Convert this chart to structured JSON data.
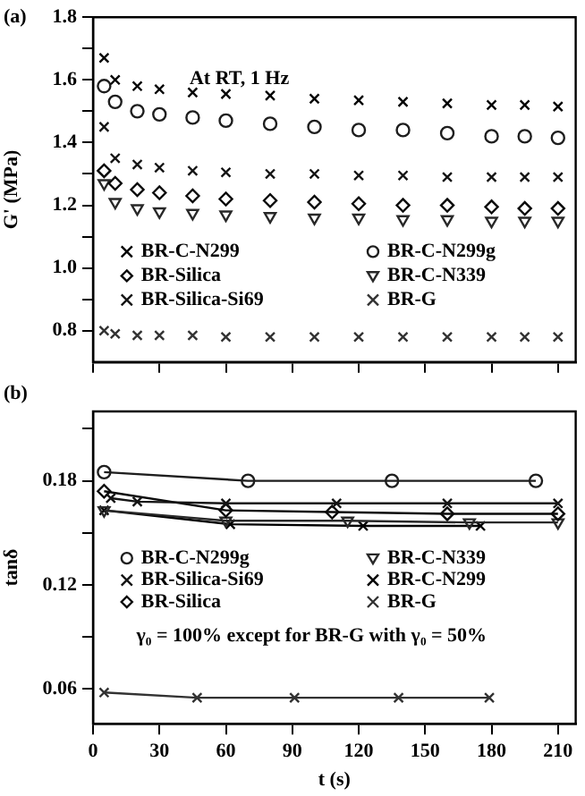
{
  "chart_data": [
    {
      "type": "scatter",
      "title": "(a)",
      "ylabel": "G' (MPa)",
      "xlim": [
        0,
        218
      ],
      "xticks": [
        0,
        30,
        60,
        90,
        120,
        150,
        180,
        210
      ],
      "ylim": [
        0.7,
        1.8
      ],
      "yticks": [
        {
          "value": 0.8,
          "label": "0.8"
        },
        {
          "value": 0.9,
          "label": null
        },
        {
          "value": 1.0,
          "label": "1.0"
        },
        {
          "value": 1.1,
          "label": null
        },
        {
          "value": 1.2,
          "label": "1.2"
        },
        {
          "value": 1.3,
          "label": null
        },
        {
          "value": 1.4,
          "label": "1.4"
        },
        {
          "value": 1.5,
          "label": null
        },
        {
          "value": 1.6,
          "label": "1.6"
        },
        {
          "value": 1.7,
          "label": null
        },
        {
          "value": 1.8,
          "label": "1.8"
        }
      ],
      "tick_labels": "y",
      "grid": false,
      "legend": "bottom",
      "annotations": [
        "At RT, 1 Hz"
      ],
      "x": [
        5,
        10,
        20,
        30,
        45,
        60,
        80,
        100,
        120,
        140,
        160,
        180,
        195,
        210
      ],
      "series": [
        {
          "name": "BR-C-N299",
          "color": "#000000",
          "marker": "cross",
          "values": [
            1.67,
            1.6,
            1.58,
            1.57,
            1.56,
            1.555,
            1.55,
            1.54,
            1.535,
            1.53,
            1.525,
            1.52,
            1.52,
            1.515
          ]
        },
        {
          "name": "BR-Silica",
          "color": "#0a0a0a",
          "marker": "diamond",
          "values": [
            1.31,
            1.27,
            1.25,
            1.24,
            1.23,
            1.22,
            1.215,
            1.21,
            1.205,
            1.2,
            1.2,
            1.195,
            1.19,
            1.19
          ]
        },
        {
          "name": "BR-Silica-Si69",
          "color": "#141414",
          "marker": "cross",
          "values": [
            1.45,
            1.35,
            1.33,
            1.32,
            1.31,
            1.305,
            1.3,
            1.3,
            1.295,
            1.295,
            1.29,
            1.29,
            1.29,
            1.29
          ]
        },
        {
          "name": "BR-C-N299g",
          "color": "#1e1e1e",
          "marker": "circle",
          "values": [
            1.58,
            1.53,
            1.5,
            1.49,
            1.48,
            1.47,
            1.46,
            1.45,
            1.44,
            1.44,
            1.43,
            1.42,
            1.42,
            1.415
          ]
        },
        {
          "name": "BR-C-N339",
          "color": "#282828",
          "marker": "triangle",
          "values": [
            1.27,
            1.21,
            1.19,
            1.18,
            1.175,
            1.17,
            1.165,
            1.16,
            1.16,
            1.155,
            1.155,
            1.15,
            1.15,
            1.15
          ]
        },
        {
          "name": "BR-G",
          "color": "#323232",
          "marker": "cross",
          "values": [
            0.8,
            0.79,
            0.785,
            0.785,
            0.785,
            0.78,
            0.78,
            0.78,
            0.78,
            0.78,
            0.78,
            0.78,
            0.78,
            0.78
          ]
        }
      ]
    },
    {
      "type": "line",
      "title": "(b)",
      "xlabel": "t (s)",
      "ylabel": "tanδ",
      "xlim": [
        0,
        218
      ],
      "xticks": [
        0,
        30,
        60,
        90,
        120,
        150,
        180,
        210
      ],
      "ylim": [
        0.04,
        0.22
      ],
      "yticks": [
        {
          "value": 0.06,
          "label": "0.06"
        },
        {
          "value": 0.09,
          "label": null
        },
        {
          "value": 0.12,
          "label": "0.12"
        },
        {
          "value": 0.15,
          "label": null
        },
        {
          "value": 0.18,
          "label": "0.18"
        },
        {
          "value": 0.21,
          "label": null
        }
      ],
      "grid": false,
      "legend": "bottom",
      "line_style": "solid",
      "annotations": [
        "γ₀ = 100% except for BR-G with γ₀ = 50%"
      ],
      "series": [
        {
          "name": "BR-C-N299g",
          "color": "#1e1e1e",
          "marker": "circle",
          "x": [
            5,
            70,
            135,
            200
          ],
          "values": [
            0.185,
            0.18,
            0.18,
            0.18
          ]
        },
        {
          "name": "BR-Silica-Si69",
          "color": "#141414",
          "marker": "cross",
          "x": [
            8,
            20,
            60,
            110,
            160,
            210
          ],
          "values": [
            0.17,
            0.168,
            0.167,
            0.167,
            0.167,
            0.167
          ]
        },
        {
          "name": "BR-Silica",
          "color": "#0a0a0a",
          "marker": "diamond",
          "x": [
            5,
            60,
            108,
            160,
            210
          ],
          "values": [
            0.174,
            0.163,
            0.162,
            0.161,
            0.161
          ]
        },
        {
          "name": "BR-C-N339",
          "color": "#282828",
          "marker": "triangle",
          "x": [
            5,
            60,
            115,
            170,
            210
          ],
          "values": [
            0.163,
            0.157,
            0.157,
            0.156,
            0.156
          ]
        },
        {
          "name": "BR-C-N299",
          "color": "#000000",
          "marker": "cross",
          "x": [
            5,
            62,
            122,
            175
          ],
          "values": [
            0.163,
            0.155,
            0.154,
            0.154
          ]
        },
        {
          "name": "BR-G",
          "color": "#323232",
          "marker": "cross",
          "x": [
            5,
            47,
            91,
            138,
            179
          ],
          "values": [
            0.058,
            0.055,
            0.055,
            0.055,
            0.055
          ]
        }
      ]
    }
  ]
}
